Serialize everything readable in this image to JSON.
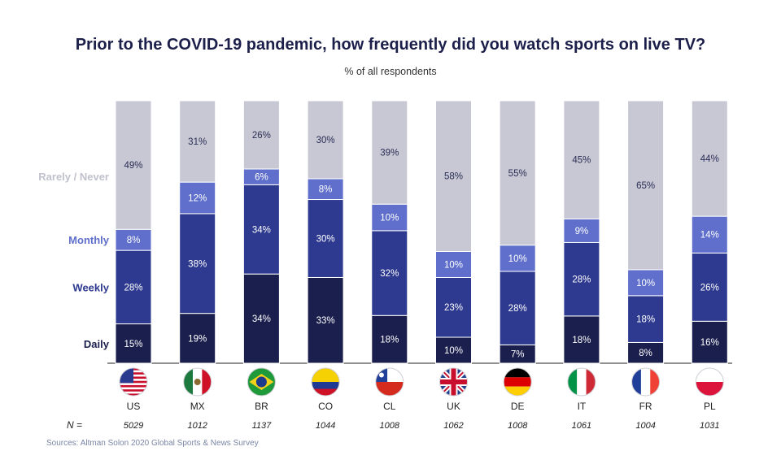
{
  "title": "Prior to the COVID-19 pandemic, how frequently did you watch sports on live TV?",
  "subtitle": "% of all respondents",
  "source": "Sources: Altman Solon 2020 Global Sports & News Survey",
  "n_label": "N =",
  "colors": {
    "Daily": "#1b1f4e",
    "Weekly": "#2e3a8f",
    "Monthly": "#5f6fcb",
    "Rarely / Never": "#c7c8d3"
  },
  "chart_data": {
    "type": "bar",
    "stacked": true,
    "categories": [
      "US",
      "MX",
      "BR",
      "CO",
      "CL",
      "UK",
      "DE",
      "IT",
      "FR",
      "PL"
    ],
    "flags": [
      "us-flag-icon",
      "mx-flag-icon",
      "br-flag-icon",
      "co-flag-icon",
      "cl-flag-icon",
      "uk-flag-icon",
      "de-flag-icon",
      "it-flag-icon",
      "fr-flag-icon",
      "pl-flag-icon"
    ],
    "sample_sizes": [
      "5029",
      "1012",
      "1137",
      "1044",
      "1008",
      "1062",
      "1008",
      "1061",
      "1004",
      "1031"
    ],
    "series": [
      {
        "name": "Daily",
        "values": [
          15,
          19,
          34,
          33,
          18,
          10,
          7,
          18,
          8,
          16
        ]
      },
      {
        "name": "Weekly",
        "values": [
          28,
          38,
          34,
          30,
          32,
          23,
          28,
          28,
          18,
          26
        ]
      },
      {
        "name": "Monthly",
        "values": [
          8,
          12,
          6,
          8,
          10,
          10,
          10,
          9,
          10,
          14
        ]
      },
      {
        "name": "Rarely / Never",
        "values": [
          49,
          31,
          26,
          30,
          39,
          58,
          55,
          45,
          65,
          44
        ]
      }
    ],
    "value_suffix": "%",
    "ylim": [
      0,
      100
    ]
  }
}
